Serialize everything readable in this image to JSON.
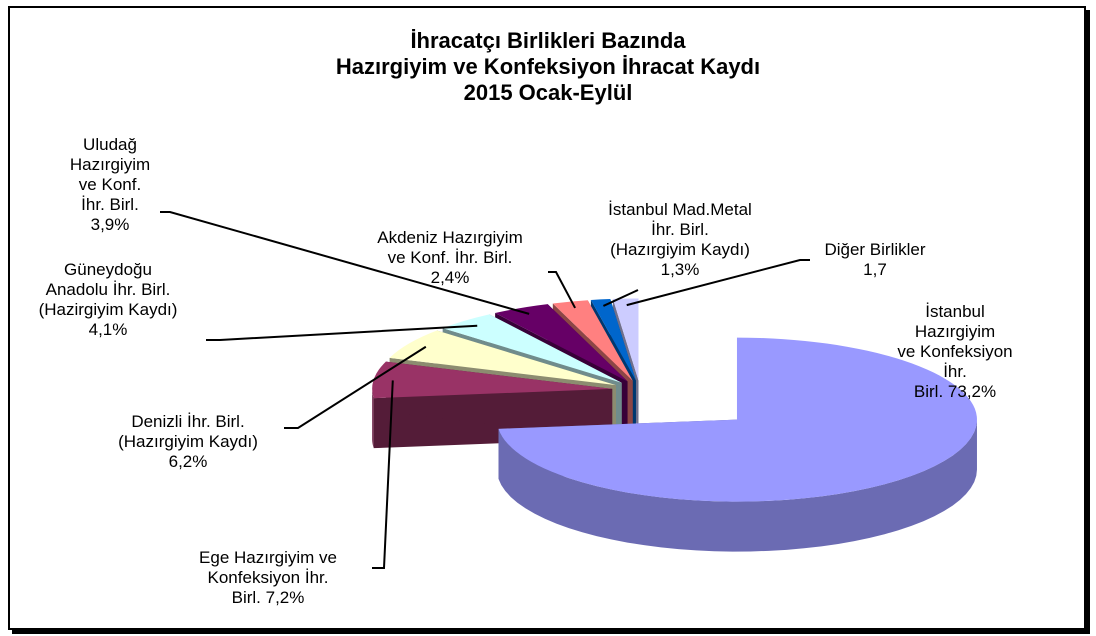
{
  "chart_data": {
    "type": "pie3d",
    "title": "İhracatçı Birlikleri Bazında\nHazırgiyim ve Konfeksiyon İhracat Kaydı\n2015 Ocak-Eylül",
    "categories": [
      "İstanbul Hazırgiyim\nve Konfeksiyon İhr.\nBirl.",
      "Ege Hazırgiyim ve\nKonfeksiyon İhr.\nBirl.",
      "Denizli İhr. Birl.\n(Hazırgiyim Kaydı)",
      "Güneydoğu\nAnadolu İhr. Birl.\n(Hazirgiyim Kaydı)",
      "Uludağ\nHazırgiyim\nve Konf.\nİhr. Birl.",
      "Akdeniz Hazırgiyim\nve Konf. İhr. Birl.",
      "İstanbul Mad.Metal\nİhr. Birl.\n(Hazırgiyim Kaydı)",
      "Diğer Birlikler"
    ],
    "values": [
      73.2,
      7.2,
      6.2,
      4.1,
      3.9,
      2.4,
      1.3,
      1.7
    ],
    "value_labels": [
      "73,2%",
      "7,2%",
      "6,2%",
      "4,1%",
      "3,9%",
      "2,4%",
      "1,3%",
      "1,7"
    ],
    "colors": [
      "#9999ff",
      "#993366",
      "#ffffcc",
      "#ccffff",
      "#660066",
      "#ff8080",
      "#0066cc",
      "#ccccff"
    ]
  }
}
